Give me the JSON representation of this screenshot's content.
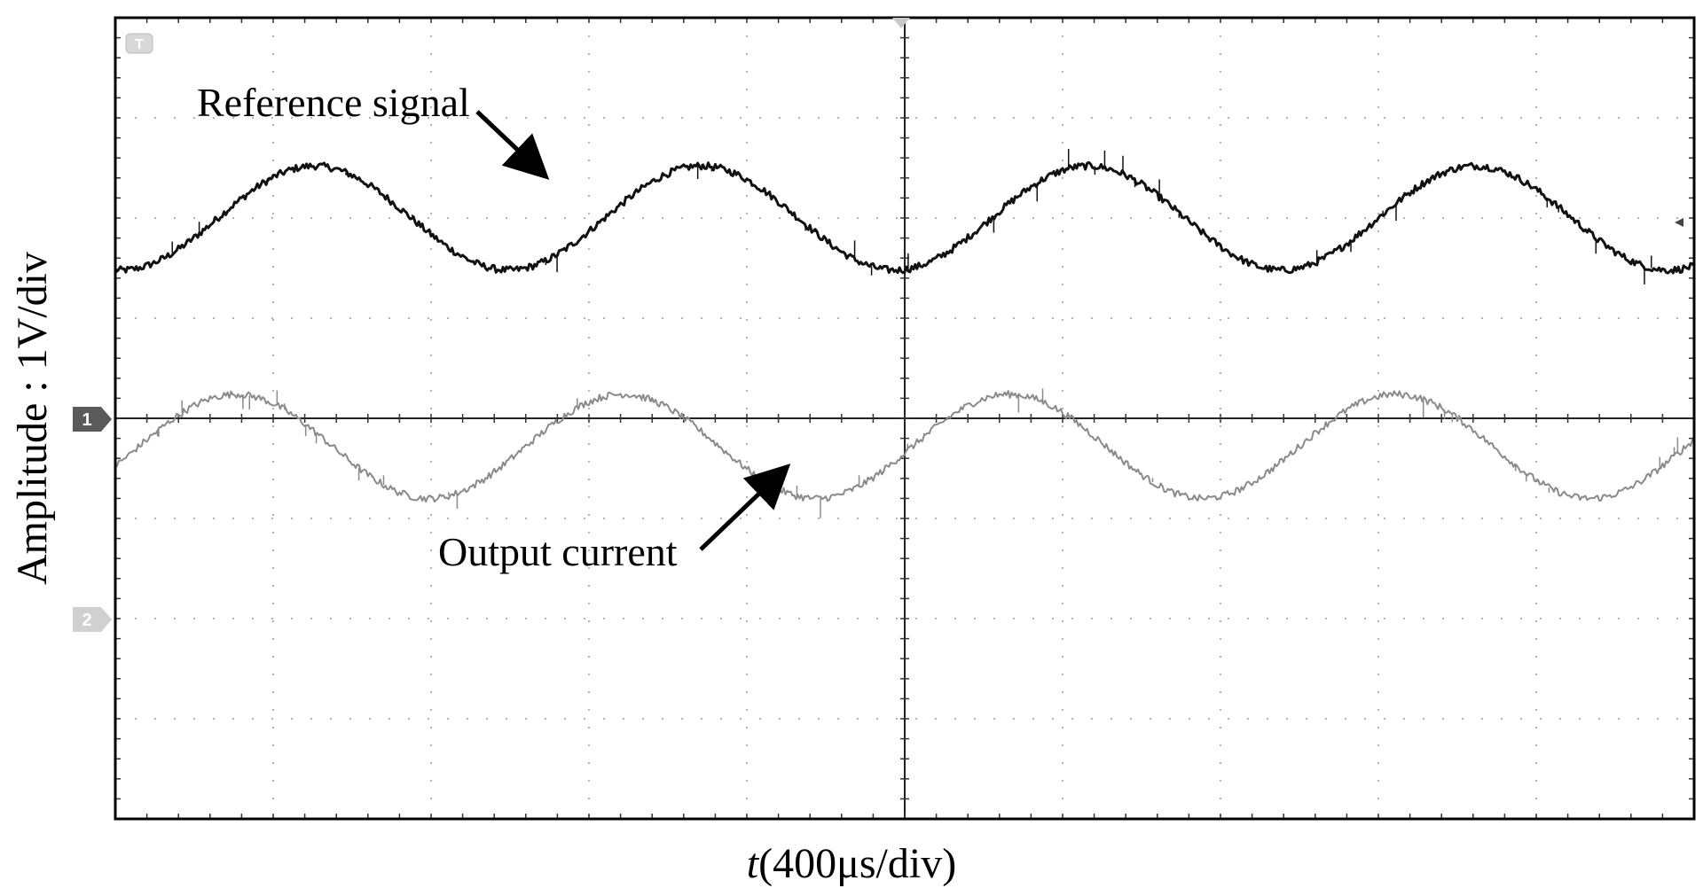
{
  "chart_data": {
    "type": "line",
    "title": "",
    "xlabel_italic": "t",
    "xlabel_rest": "(400μs/div)",
    "ylabel": "Amplitude :  1V/div",
    "x_divisions": 10,
    "y_divisions": 8,
    "grid": true,
    "annotations": [
      "Reference signal",
      "Output current"
    ],
    "channel_markers": [
      "1",
      "2"
    ],
    "trigger_marker": "T",
    "series": [
      {
        "name": "Reference signal",
        "color": "#111111",
        "offset_div": 2.0,
        "amplitude_div": 0.52,
        "period_div": 2.45,
        "start_phase_div": 0.65,
        "x_range_div": [
          0,
          10
        ]
      },
      {
        "name": "Output current",
        "color": "#8a8a8a",
        "offset_div": -0.28,
        "amplitude_div": 0.52,
        "period_div": 2.45,
        "start_phase_div": 0.15,
        "x_range_div": [
          0,
          10
        ]
      }
    ]
  }
}
